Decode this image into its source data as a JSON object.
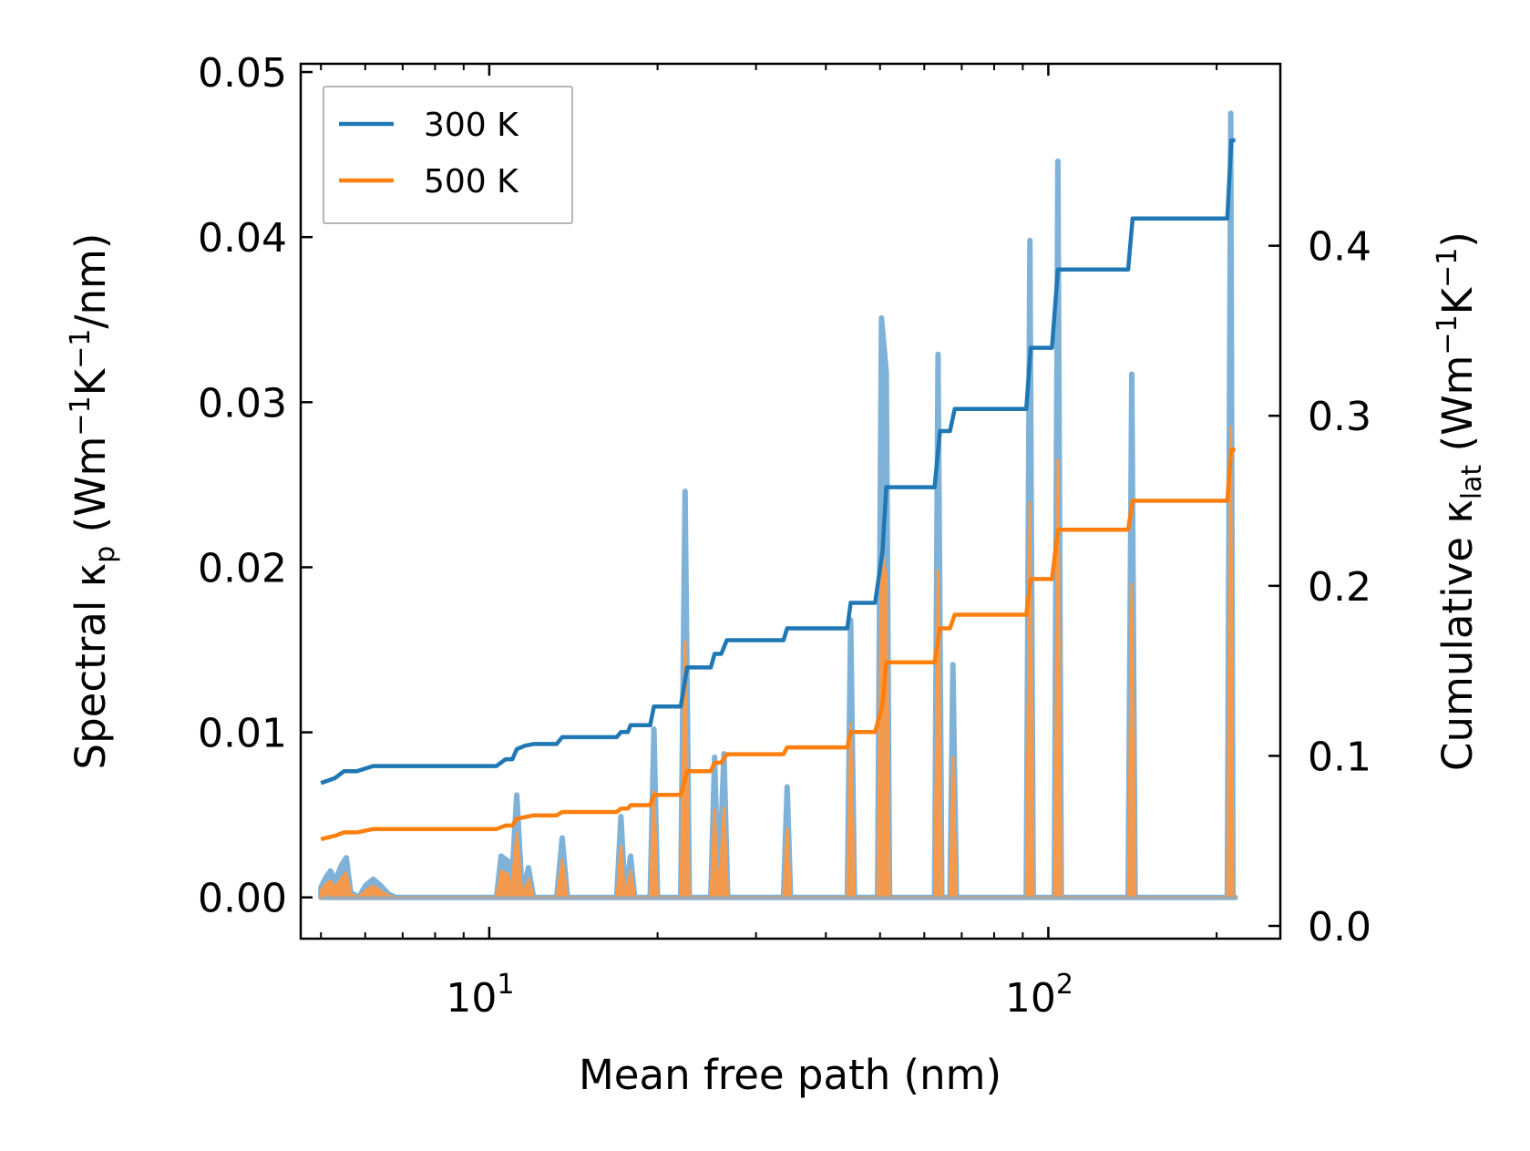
{
  "chart_data": {
    "type": "line",
    "x_scale": "log",
    "xlabel": "Mean free path (nm)",
    "ylabel_left": {
      "main": "Spectral κ",
      "sub": "p",
      "units": " (Wm",
      "sup1": "−1",
      "mid": "K",
      "sup2": "−1",
      "tail": "/nm)"
    },
    "ylabel_right": {
      "main": "Cumulative κ",
      "sub": "lat",
      "units": " (Wm",
      "sup1": "−1",
      "mid": "K",
      "sup2": "−1",
      "tail": ")"
    },
    "xlim": [
      4.6,
      260
    ],
    "ylim_left": [
      -0.0025,
      0.0505
    ],
    "ylim_right": [
      -0.0075,
      0.507
    ],
    "x_ticks": [
      {
        "value": 10,
        "base": "10",
        "exp": "1"
      },
      {
        "value": 100,
        "base": "10",
        "exp": "2"
      }
    ],
    "y_ticks_left": [
      {
        "value": 0.0,
        "label": "0.00"
      },
      {
        "value": 0.01,
        "label": "0.01"
      },
      {
        "value": 0.02,
        "label": "0.02"
      },
      {
        "value": 0.03,
        "label": "0.03"
      },
      {
        "value": 0.04,
        "label": "0.04"
      },
      {
        "value": 0.05,
        "label": "0.05"
      }
    ],
    "y_ticks_right": [
      {
        "value": 0.0,
        "label": "0.0"
      },
      {
        "value": 0.1,
        "label": "0.1"
      },
      {
        "value": 0.2,
        "label": "0.2"
      },
      {
        "value": 0.3,
        "label": "0.3"
      },
      {
        "value": 0.4,
        "label": "0.4"
      }
    ],
    "legend": {
      "position": "upper-left",
      "entries": [
        "300 K",
        "500 K"
      ]
    },
    "colors": {
      "300 K": "#1f77b4",
      "500 K": "#ff7f0e",
      "fill_300": "#7fb2d9",
      "fill_500": "#f39a4e"
    },
    "spectral_series": [
      {
        "name": "300 K",
        "axis": "left",
        "points": [
          [
            5.0,
            0.0006
          ],
          [
            5.1,
            0.0012
          ],
          [
            5.2,
            0.0016
          ],
          [
            5.3,
            0.001
          ],
          [
            5.45,
            0.002
          ],
          [
            5.55,
            0.0024
          ],
          [
            5.65,
            0.0003
          ],
          [
            5.85,
            0.0
          ],
          [
            6.0,
            0.0007
          ],
          [
            6.2,
            0.0011
          ],
          [
            6.4,
            0.0007
          ],
          [
            6.6,
            0.0002
          ],
          [
            6.8,
            0.0
          ],
          [
            10.3,
            0.0
          ],
          [
            10.5,
            0.0025
          ],
          [
            10.8,
            0.0022
          ],
          [
            10.95,
            0.0005
          ],
          [
            11.2,
            0.0062
          ],
          [
            11.45,
            0.0002
          ],
          [
            11.75,
            0.0018
          ],
          [
            12.0,
            0.0
          ],
          [
            13.2,
            0.0
          ],
          [
            13.5,
            0.0036
          ],
          [
            13.8,
            0.0
          ],
          [
            16.9,
            0.0
          ],
          [
            17.2,
            0.0049
          ],
          [
            17.5,
            0.0
          ],
          [
            17.9,
            0.0025
          ],
          [
            18.2,
            0.0
          ],
          [
            19.4,
            0.0
          ],
          [
            19.7,
            0.0102
          ],
          [
            20.0,
            0.0
          ],
          [
            22.0,
            0.0
          ],
          [
            22.4,
            0.0246
          ],
          [
            22.8,
            0.0
          ],
          [
            24.9,
            0.0
          ],
          [
            25.3,
            0.0085
          ],
          [
            25.7,
            0.0
          ],
          [
            26.3,
            0.0087
          ],
          [
            26.7,
            0.0
          ],
          [
            33.6,
            0.0
          ],
          [
            34.1,
            0.0067
          ],
          [
            34.6,
            0.0
          ],
          [
            43.7,
            0.0
          ],
          [
            44.3,
            0.0168
          ],
          [
            45.0,
            0.0
          ],
          [
            49.5,
            0.0
          ],
          [
            50.3,
            0.0351
          ],
          [
            51.3,
            0.0318
          ],
          [
            52.0,
            0.0
          ],
          [
            62.6,
            0.0
          ],
          [
            63.5,
            0.0329
          ],
          [
            64.5,
            0.0
          ],
          [
            66.7,
            0.0
          ],
          [
            67.5,
            0.0141
          ],
          [
            68.5,
            0.0
          ],
          [
            91.3,
            0.0
          ],
          [
            92.7,
            0.0398
          ],
          [
            94.0,
            0.0
          ],
          [
            102.5,
            0.0
          ],
          [
            104.0,
            0.0446
          ],
          [
            105.5,
            0.0
          ],
          [
            138.9,
            0.0
          ],
          [
            141.0,
            0.0317
          ],
          [
            143.0,
            0.0
          ],
          [
            209.0,
            0.0
          ],
          [
            212.0,
            0.0475
          ],
          [
            214.0,
            0.0
          ],
          [
            216.0,
            0.0
          ]
        ]
      },
      {
        "name": "500 K",
        "axis": "left",
        "points": [
          [
            5.0,
            0.0004
          ],
          [
            5.1,
            0.0008
          ],
          [
            5.2,
            0.001
          ],
          [
            5.3,
            0.0006
          ],
          [
            5.45,
            0.0012
          ],
          [
            5.55,
            0.0015
          ],
          [
            5.65,
            0.0002
          ],
          [
            5.85,
            0.0
          ],
          [
            6.0,
            0.0004
          ],
          [
            6.2,
            0.0007
          ],
          [
            6.4,
            0.0004
          ],
          [
            6.6,
            0.0001
          ],
          [
            6.8,
            0.0
          ],
          [
            10.3,
            0.0
          ],
          [
            10.5,
            0.0016
          ],
          [
            10.8,
            0.0014
          ],
          [
            10.95,
            0.0003
          ],
          [
            11.2,
            0.0039
          ],
          [
            11.45,
            0.0001
          ],
          [
            11.75,
            0.0011
          ],
          [
            12.0,
            0.0
          ],
          [
            13.2,
            0.0
          ],
          [
            13.5,
            0.0023
          ],
          [
            13.8,
            0.0
          ],
          [
            16.9,
            0.0
          ],
          [
            17.2,
            0.0031
          ],
          [
            17.5,
            0.0
          ],
          [
            17.9,
            0.0016
          ],
          [
            18.2,
            0.0
          ],
          [
            19.4,
            0.0
          ],
          [
            19.7,
            0.0064
          ],
          [
            20.0,
            0.0
          ],
          [
            22.0,
            0.0
          ],
          [
            22.4,
            0.0155
          ],
          [
            22.8,
            0.0
          ],
          [
            24.9,
            0.0
          ],
          [
            25.3,
            0.0053
          ],
          [
            25.7,
            0.0
          ],
          [
            26.3,
            0.0054
          ],
          [
            26.7,
            0.0
          ],
          [
            33.6,
            0.0
          ],
          [
            34.1,
            0.0042
          ],
          [
            34.6,
            0.0
          ],
          [
            43.7,
            0.0
          ],
          [
            44.3,
            0.0105
          ],
          [
            45.0,
            0.0
          ],
          [
            49.5,
            0.0
          ],
          [
            50.3,
            0.0211
          ],
          [
            51.3,
            0.0195
          ],
          [
            52.0,
            0.0
          ],
          [
            62.6,
            0.0
          ],
          [
            63.5,
            0.0198
          ],
          [
            64.5,
            0.0
          ],
          [
            66.7,
            0.0
          ],
          [
            67.5,
            0.0085
          ],
          [
            68.5,
            0.0
          ],
          [
            91.3,
            0.0
          ],
          [
            92.7,
            0.0239
          ],
          [
            94.0,
            0.0
          ],
          [
            102.5,
            0.0
          ],
          [
            104.0,
            0.0265
          ],
          [
            105.5,
            0.0
          ],
          [
            138.9,
            0.0
          ],
          [
            141.0,
            0.019
          ],
          [
            143.0,
            0.0
          ],
          [
            209.0,
            0.0
          ],
          [
            212.0,
            0.0285
          ],
          [
            214.0,
            0.0
          ],
          [
            216.0,
            0.0
          ]
        ]
      }
    ],
    "cumulative_series": [
      {
        "name": "300 K",
        "axis": "right",
        "points": [
          [
            5.0,
            0.084
          ],
          [
            5.3,
            0.087
          ],
          [
            5.5,
            0.091
          ],
          [
            5.8,
            0.091
          ],
          [
            6.2,
            0.094
          ],
          [
            10.3,
            0.094
          ],
          [
            10.7,
            0.098
          ],
          [
            11.0,
            0.098
          ],
          [
            11.2,
            0.104
          ],
          [
            11.6,
            0.106
          ],
          [
            12.0,
            0.107
          ],
          [
            13.2,
            0.107
          ],
          [
            13.5,
            0.111
          ],
          [
            16.9,
            0.111
          ],
          [
            17.2,
            0.114
          ],
          [
            17.7,
            0.114
          ],
          [
            17.9,
            0.118
          ],
          [
            19.4,
            0.118
          ],
          [
            19.7,
            0.129
          ],
          [
            22.0,
            0.129
          ],
          [
            22.6,
            0.152
          ],
          [
            24.9,
            0.152
          ],
          [
            25.3,
            0.16
          ],
          [
            26.0,
            0.16
          ],
          [
            26.6,
            0.168
          ],
          [
            33.6,
            0.168
          ],
          [
            34.1,
            0.175
          ],
          [
            43.7,
            0.175
          ],
          [
            44.3,
            0.19
          ],
          [
            49.0,
            0.19
          ],
          [
            50.5,
            0.22
          ],
          [
            51.3,
            0.258
          ],
          [
            62.6,
            0.258
          ],
          [
            64.0,
            0.291
          ],
          [
            66.7,
            0.291
          ],
          [
            68.0,
            0.304
          ],
          [
            91.3,
            0.304
          ],
          [
            93.0,
            0.34
          ],
          [
            101.5,
            0.34
          ],
          [
            104.0,
            0.386
          ],
          [
            138.9,
            0.386
          ],
          [
            141.5,
            0.416
          ],
          [
            209.0,
            0.416
          ],
          [
            212.5,
            0.462
          ],
          [
            216.0,
            0.462
          ]
        ]
      },
      {
        "name": "500 K",
        "axis": "right",
        "points": [
          [
            5.0,
            0.051
          ],
          [
            5.3,
            0.053
          ],
          [
            5.5,
            0.055
          ],
          [
            5.8,
            0.055
          ],
          [
            6.2,
            0.057
          ],
          [
            10.3,
            0.057
          ],
          [
            10.7,
            0.059
          ],
          [
            11.0,
            0.059
          ],
          [
            11.2,
            0.063
          ],
          [
            11.6,
            0.064
          ],
          [
            12.0,
            0.065
          ],
          [
            13.2,
            0.065
          ],
          [
            13.5,
            0.067
          ],
          [
            16.9,
            0.067
          ],
          [
            17.2,
            0.069
          ],
          [
            17.7,
            0.069
          ],
          [
            17.9,
            0.071
          ],
          [
            19.4,
            0.071
          ],
          [
            19.7,
            0.077
          ],
          [
            22.0,
            0.077
          ],
          [
            22.6,
            0.091
          ],
          [
            24.9,
            0.091
          ],
          [
            25.3,
            0.096
          ],
          [
            26.0,
            0.096
          ],
          [
            26.6,
            0.101
          ],
          [
            33.6,
            0.101
          ],
          [
            34.1,
            0.105
          ],
          [
            43.7,
            0.105
          ],
          [
            44.3,
            0.114
          ],
          [
            49.0,
            0.114
          ],
          [
            50.5,
            0.13
          ],
          [
            51.3,
            0.155
          ],
          [
            62.6,
            0.155
          ],
          [
            64.0,
            0.175
          ],
          [
            66.7,
            0.175
          ],
          [
            68.0,
            0.183
          ],
          [
            91.3,
            0.183
          ],
          [
            93.0,
            0.204
          ],
          [
            101.5,
            0.204
          ],
          [
            104.0,
            0.233
          ],
          [
            138.9,
            0.233
          ],
          [
            141.5,
            0.25
          ],
          [
            209.0,
            0.25
          ],
          [
            212.5,
            0.28
          ],
          [
            216.0,
            0.28
          ]
        ]
      }
    ]
  }
}
